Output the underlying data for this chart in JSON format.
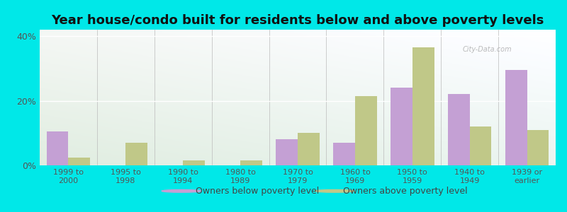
{
  "title": "Year house/condo built for residents below and above poverty levels",
  "categories": [
    "1999 to\n2000",
    "1995 to\n1998",
    "1990 to\n1994",
    "1980 to\n1989",
    "1970 to\n1979",
    "1960 to\n1969",
    "1950 to\n1959",
    "1940 to\n1949",
    "1939 or\nearlier"
  ],
  "below_poverty": [
    10.5,
    0.0,
    0.0,
    0.0,
    8.0,
    7.0,
    24.0,
    22.0,
    29.5
  ],
  "above_poverty": [
    2.5,
    7.0,
    1.5,
    1.5,
    10.0,
    21.5,
    36.5,
    12.0,
    11.0
  ],
  "color_below": "#c4a0d4",
  "color_above": "#c0c888",
  "background_outer": "#00e8e8",
  "ylim": [
    0,
    42
  ],
  "yticks": [
    0,
    20,
    40
  ],
  "ytick_labels": [
    "0%",
    "20%",
    "40%"
  ],
  "legend_below": "Owners below poverty level",
  "legend_above": "Owners above poverty level",
  "title_fontsize": 13,
  "bar_width": 0.38
}
